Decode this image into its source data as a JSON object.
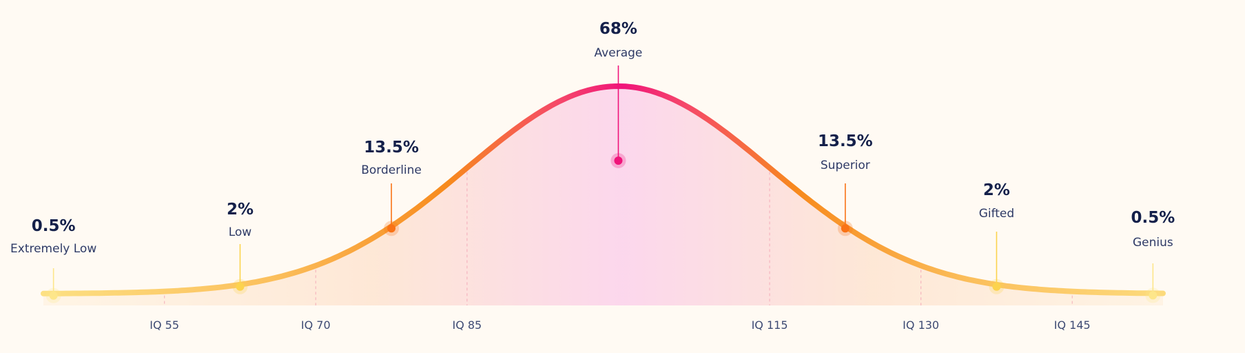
{
  "chart_data": {
    "type": "area",
    "x_ticks": [
      {
        "x": 55,
        "label": "IQ 55"
      },
      {
        "x": 70,
        "label": "IQ 70"
      },
      {
        "x": 85,
        "label": "IQ 85"
      },
      {
        "x": 115,
        "label": "IQ 115"
      },
      {
        "x": 130,
        "label": "IQ 130"
      },
      {
        "x": 145,
        "label": "IQ 145"
      }
    ],
    "segments": [
      {
        "label": "Extremely Low",
        "percent": "0.5%",
        "value": 0.5,
        "iq": 44,
        "color": "#fde68a"
      },
      {
        "label": "Low",
        "percent": "2%",
        "value": 2,
        "iq": 62.5,
        "color": "#fcd34d"
      },
      {
        "label": "Borderline",
        "percent": "13.5%",
        "value": 13.5,
        "iq": 77.5,
        "color": "#f97316"
      },
      {
        "label": "Average",
        "percent": "68%",
        "value": 68,
        "iq": 100,
        "color": "#f0147a"
      },
      {
        "label": "Superior",
        "percent": "13.5%",
        "value": 13.5,
        "iq": 122.5,
        "color": "#f97316"
      },
      {
        "label": "Gifted",
        "percent": "2%",
        "value": 2,
        "iq": 137.5,
        "color": "#fcd34d"
      },
      {
        "label": "Genius",
        "percent": "0.5%",
        "value": 0.5,
        "iq": 153,
        "color": "#fde68a"
      }
    ],
    "curve": {
      "mean": 100,
      "sd": 15,
      "x_range": [
        43,
        154
      ]
    },
    "colors": {
      "peak": "#f0147a",
      "mid": "#f97316",
      "tail": "#fde68a",
      "text": "#14204a"
    }
  }
}
